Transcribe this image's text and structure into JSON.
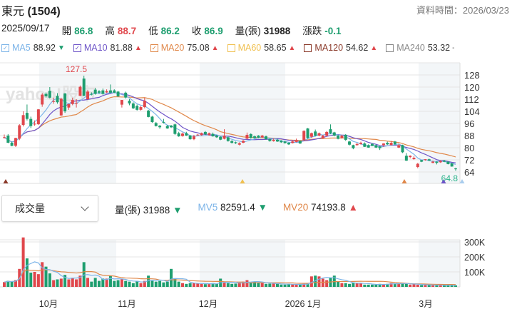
{
  "header": {
    "stock_name": "東元",
    "stock_code": "(1504)",
    "data_time_label": "資料時間：2026/03/23"
  },
  "quote": {
    "date": "2025/09/17",
    "open_label": "開",
    "open": "86.8",
    "high_label": "高",
    "high": "88.7",
    "low_label": "低",
    "low": "86.2",
    "close_label": "收",
    "close": "86.9",
    "volume_label": "量(張)",
    "volume": "31988",
    "change_label": "漲跌",
    "change": "-0.1"
  },
  "ma_legend": [
    {
      "name": "MA5",
      "value": "88.92",
      "arrow": "▼",
      "checked": true,
      "color": "#7cb4e8",
      "arrow_color": "#1e9e6f"
    },
    {
      "name": "MA10",
      "value": "81.88",
      "arrow": "▲",
      "checked": true,
      "color": "#6e55c8",
      "arrow_color": "#e0474c"
    },
    {
      "name": "MA20",
      "value": "75.08",
      "arrow": "▲",
      "checked": true,
      "color": "#e0884a",
      "arrow_color": "#e0474c"
    },
    {
      "name": "MA60",
      "value": "58.65",
      "arrow": "▲",
      "checked": false,
      "color": "#f0c050",
      "arrow_color": "#e0474c"
    },
    {
      "name": "MA120",
      "value": "54.62",
      "arrow": "▲",
      "checked": false,
      "color": "#8b3a2a",
      "arrow_color": "#e0474c"
    },
    {
      "name": "MA240",
      "value": "53.32",
      "arrow": "-",
      "checked": false,
      "color": "#888888",
      "arrow_color": "#555555"
    }
  ],
  "watermark": "yahoo!股市",
  "volume_panel": {
    "selector_value": "成交量",
    "volume_label": "量(張)",
    "volume_value": "31988",
    "volume_arrow": "▼",
    "mv5_label": "MV5",
    "mv5_value": "82591.4",
    "mv5_arrow": "▼",
    "mv20_label": "MV20",
    "mv20_value": "74193.8",
    "mv20_arrow": "▲"
  },
  "colors": {
    "up": "#e0474c",
    "down": "#1e9e6f",
    "mv5": "#7cb4e8",
    "mv20": "#e0884a",
    "grid": "#e4e4e4",
    "band": "#f3f6f8"
  },
  "chart_data": {
    "type": "candlestick",
    "price_axis": {
      "ticks": [
        "128",
        "120",
        "112",
        "104",
        "96",
        "88",
        "80",
        "72",
        "64"
      ],
      "range": [
        56,
        136
      ]
    },
    "volume_axis": {
      "ticks": [
        "300K",
        "200K",
        "100K"
      ],
      "unit": "K",
      "range": [
        0,
        380
      ]
    },
    "x_tick_labels": [
      "10月",
      "11月",
      "12月",
      "2026 1月",
      "3月"
    ],
    "high_annotation": "127.5",
    "low_annotation": "64.8",
    "ohlc": [
      [
        86.8,
        88.7,
        86.2,
        86.9
      ],
      [
        88.0,
        89,
        83,
        83.3
      ],
      [
        83.3,
        84,
        81,
        81.2
      ],
      [
        81.3,
        86.6,
        80.5,
        86.4
      ],
      [
        86,
        95.5,
        85,
        94.8
      ],
      [
        95,
        104,
        94,
        101.5
      ],
      [
        103,
        108.5,
        98,
        99
      ],
      [
        99,
        100.5,
        93,
        94.3
      ],
      [
        95.5,
        98,
        94.5,
        95.8
      ],
      [
        95.5,
        105.5,
        95,
        105.3
      ],
      [
        108.5,
        116,
        107,
        115
      ],
      [
        115.5,
        116.5,
        113,
        113.9
      ],
      [
        117.5,
        120,
        112.5,
        113
      ],
      [
        110.5,
        113,
        109,
        110.7
      ],
      [
        114.2,
        116,
        109,
        110
      ],
      [
        101.3,
        113,
        101,
        112.3
      ],
      [
        115.8,
        116,
        103,
        104
      ],
      [
        106.5,
        108.8,
        105,
        108.8
      ],
      [
        108.8,
        113,
        108,
        111.5
      ],
      [
        109.2,
        112,
        106.5,
        109.5
      ],
      [
        114.2,
        121,
        114,
        120.2
      ],
      [
        125.6,
        127.5,
        114,
        114.2
      ],
      [
        112,
        118,
        111.5,
        117
      ],
      [
        115.5,
        116.5,
        114.5,
        115.3
      ],
      [
        118.3,
        119.5,
        115,
        115.5
      ],
      [
        117.2,
        118,
        115.5,
        116.3
      ],
      [
        117.8,
        119,
        115,
        115.5
      ],
      [
        116.5,
        118.5,
        116,
        117.2
      ],
      [
        117.8,
        121.7,
        116,
        116.3
      ],
      [
        117.8,
        118.5,
        116,
        116.3
      ],
      [
        117,
        117.5,
        113.5,
        113.9
      ],
      [
        108.4,
        111.5,
        106.5,
        111.5
      ],
      [
        116.3,
        117,
        112.5,
        113.1
      ],
      [
        111,
        112,
        108,
        109.2
      ],
      [
        109.2,
        110,
        105.5,
        106
      ],
      [
        107.6,
        108.5,
        104.5,
        105
      ],
      [
        105,
        107.5,
        104.5,
        106.8
      ],
      [
        106.8,
        113,
        106,
        111
      ],
      [
        104.5,
        105,
        100,
        100.3
      ],
      [
        100.5,
        101,
        96.5,
        96.9
      ],
      [
        96.3,
        97,
        94,
        94.3
      ],
      [
        94.5,
        95,
        92.5,
        93.5
      ],
      [
        97,
        99,
        96,
        96.9
      ],
      [
        94.3,
        95,
        92.5,
        92.7
      ],
      [
        94.6,
        95,
        93,
        93.5
      ],
      [
        95.4,
        95.8,
        88.5,
        89.1
      ],
      [
        89.6,
        90.5,
        87.2,
        87.5
      ],
      [
        87.7,
        90,
        87.3,
        89.3
      ],
      [
        89.6,
        90.5,
        87.8,
        88
      ],
      [
        88,
        88.5,
        85.3,
        85.6
      ],
      [
        85.6,
        88.5,
        85,
        87.5
      ],
      [
        88.5,
        89,
        88,
        88.6
      ],
      [
        88.3,
        90,
        88,
        89.6
      ],
      [
        90.4,
        91,
        88.5,
        88.8
      ],
      [
        88.3,
        90,
        88,
        89.6
      ],
      [
        89.1,
        90,
        87.3,
        87.5
      ],
      [
        88,
        88.5,
        86.5,
        86.9
      ],
      [
        87.2,
        87.5,
        85,
        85.3
      ],
      [
        85.9,
        92.2,
        85.5,
        88
      ],
      [
        86.9,
        87.5,
        84,
        84.4
      ],
      [
        84.4,
        85,
        82.8,
        83.2
      ],
      [
        83.6,
        84,
        82.5,
        83
      ],
      [
        82,
        83.6,
        81.5,
        83
      ],
      [
        83.3,
        85,
        83,
        84.6
      ],
      [
        86,
        90,
        85.5,
        88.5
      ],
      [
        89,
        89.5,
        86,
        86.4
      ],
      [
        87.5,
        88,
        86,
        86.4
      ],
      [
        88,
        88.3,
        86.3,
        86.7
      ],
      [
        86.9,
        88.5,
        86.5,
        88
      ],
      [
        87.5,
        88,
        85.3,
        85.6
      ],
      [
        85.6,
        86,
        84,
        84.4
      ],
      [
        84.4,
        86,
        84,
        85.2
      ],
      [
        85.2,
        86,
        83.8,
        84.1
      ],
      [
        84.6,
        85,
        83.2,
        83.6
      ],
      [
        84.1,
        84.5,
        82.8,
        83
      ],
      [
        83.3,
        83.5,
        81.8,
        82.2
      ],
      [
        83.1,
        85,
        82.8,
        84.1
      ],
      [
        83.8,
        86,
        83.5,
        84.9
      ],
      [
        84.4,
        85,
        82.5,
        82.8
      ],
      [
        84.9,
        91.5,
        84.5,
        91.1
      ],
      [
        92.7,
        93,
        86,
        86.4
      ],
      [
        87.2,
        90,
        86.5,
        89.6
      ],
      [
        90.7,
        92,
        87.5,
        88
      ],
      [
        88,
        90,
        87.5,
        89.6
      ],
      [
        86.4,
        88.5,
        86,
        88
      ],
      [
        88,
        91,
        87.5,
        90.4
      ],
      [
        92.2,
        95.4,
        89,
        89.6
      ],
      [
        90.1,
        90.5,
        87.5,
        88
      ],
      [
        88,
        88.5,
        85.5,
        85.9
      ],
      [
        86.4,
        88.5,
        86,
        88
      ],
      [
        88.5,
        89,
        84.5,
        85.2
      ],
      [
        84.1,
        84.5,
        81.5,
        82
      ],
      [
        81.7,
        82,
        79,
        79.7
      ],
      [
        81.7,
        83,
        81.3,
        82.5
      ],
      [
        82.5,
        84,
        82,
        83.3
      ],
      [
        82.8,
        83.5,
        80.5,
        80.6
      ],
      [
        81.7,
        82.2,
        80,
        80.1
      ],
      [
        82.5,
        83,
        81,
        81.2
      ],
      [
        81.7,
        82,
        79.8,
        80.1
      ],
      [
        80.9,
        81,
        78.5,
        79.7
      ],
      [
        81.7,
        83,
        80.5,
        82.8
      ],
      [
        83.3,
        84,
        81.8,
        82.2
      ],
      [
        81.7,
        84.5,
        81.5,
        83.3
      ],
      [
        84.1,
        84.5,
        82,
        82.2
      ],
      [
        80.1,
        82.5,
        79.8,
        81.7
      ],
      [
        81.7,
        82,
        76.5,
        77
      ],
      [
        74.7,
        76.5,
        71.3,
        71.5
      ],
      [
        73.9,
        75,
        73,
        74.7
      ],
      [
        72.5,
        74.5,
        72,
        73.4
      ],
      [
        67.3,
        70,
        66.5,
        69.4
      ],
      [
        71.8,
        72,
        70.5,
        70.8
      ],
      [
        71.8,
        72.5,
        71.5,
        72.4
      ],
      [
        72.4,
        72.8,
        71.3,
        71.5
      ],
      [
        70,
        71.5,
        69.8,
        70.8
      ],
      [
        70.8,
        71,
        69,
        70
      ],
      [
        70.4,
        71.8,
        70,
        71.2
      ],
      [
        71.5,
        72,
        70.5,
        70.8
      ],
      [
        70.8,
        71,
        69,
        69.2
      ],
      [
        69.7,
        70,
        67.5,
        67.6
      ],
      [
        66.3,
        66.8,
        64.8,
        66
      ]
    ],
    "volume": [
      32,
      40,
      35,
      45,
      120,
      330,
      190,
      95,
      100,
      85,
      165,
      135,
      90,
      45,
      50,
      55,
      80,
      50,
      60,
      50,
      75,
      165,
      60,
      35,
      60,
      40,
      55,
      55,
      75,
      40,
      45,
      50,
      40,
      35,
      25,
      40,
      25,
      40,
      75,
      40,
      35,
      40,
      30,
      35,
      120,
      55,
      35,
      25,
      20,
      25,
      25,
      22,
      20,
      18,
      20,
      25,
      20,
      55,
      30,
      25,
      20,
      22,
      30,
      35,
      45,
      30,
      35,
      30,
      25,
      20,
      22,
      22,
      20,
      15,
      15,
      20,
      18,
      15,
      15,
      20,
      25,
      70,
      75,
      70,
      55,
      45,
      60,
      75,
      35,
      25,
      25,
      20,
      30,
      25,
      25,
      15,
      15,
      15,
      15,
      20,
      18,
      20,
      25,
      22,
      20,
      25,
      20,
      15,
      18,
      15,
      12,
      12,
      12,
      12,
      12,
      10,
      10,
      12,
      12,
      10
    ],
    "ma_series_shown": [
      "MA5",
      "MA10",
      "MA20"
    ],
    "volume_lines_shown": [
      "MV5",
      "MV20"
    ]
  }
}
